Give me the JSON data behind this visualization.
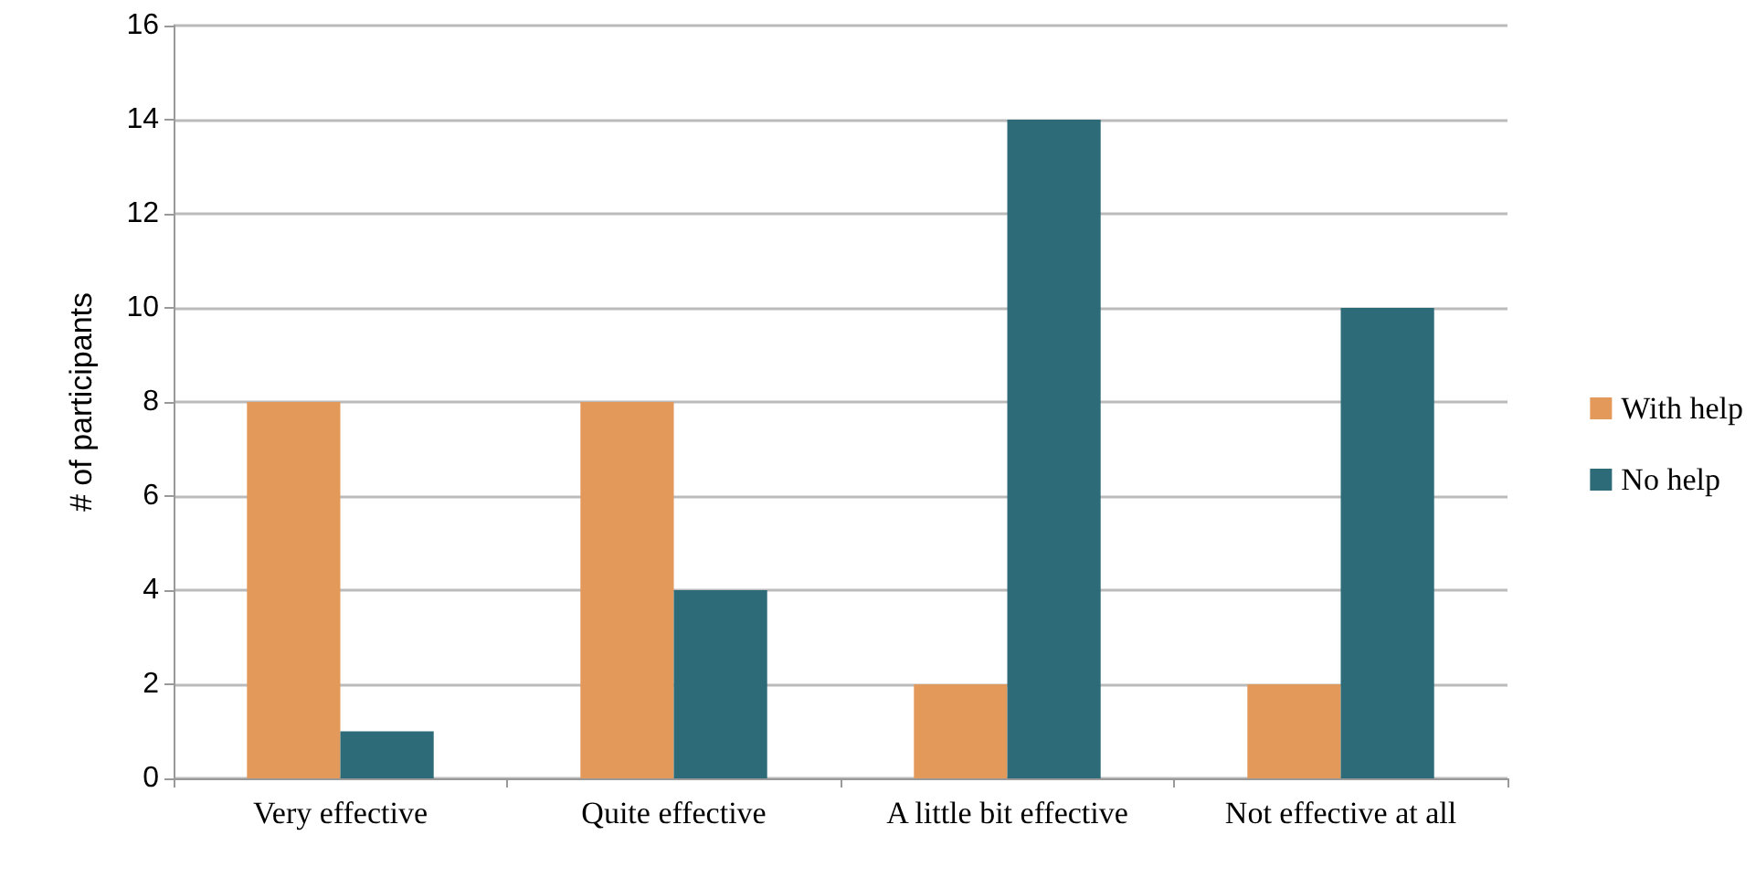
{
  "chart_data": {
    "type": "bar",
    "ylabel": "# of participants",
    "categories": [
      "Very effective",
      "Quite effective",
      "A little bit effective",
      "Not effective at all"
    ],
    "series": [
      {
        "name": "With help",
        "color": "#e3995a",
        "values": [
          8,
          8,
          2,
          2
        ]
      },
      {
        "name": "No help",
        "color": "#2e6b78",
        "values": [
          1,
          4,
          14,
          10
        ]
      }
    ],
    "ylim": [
      0,
      16
    ],
    "yticks": [
      0,
      2,
      4,
      6,
      8,
      10,
      12,
      14,
      16
    ],
    "grid": "y",
    "legend": "right"
  }
}
